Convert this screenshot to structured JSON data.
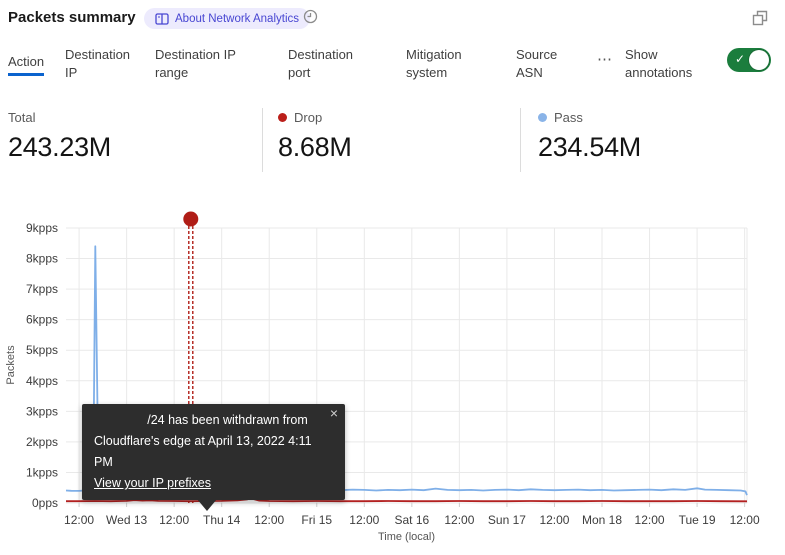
{
  "header": {
    "title": "Packets summary",
    "badge": {
      "icon": "book-icon",
      "label": "About Network Analytics"
    },
    "time_icon": "clock-icon",
    "window_icon": "restore-window-icon"
  },
  "tabs": {
    "items": [
      {
        "label": "Action",
        "active": true
      },
      {
        "label": "Destination IP",
        "active": false
      },
      {
        "label": "Destination IP range",
        "active": false
      },
      {
        "label": "Destination port",
        "active": false
      },
      {
        "label": "Mitigation system",
        "active": false
      },
      {
        "label": "Source ASN",
        "active": false
      }
    ],
    "more_label": "⋯",
    "active_underline_color": "#0b63ce",
    "annotations_toggle": {
      "label": "Show annotations",
      "state": "on",
      "color": "#1b7d3d",
      "check_icon": "✓"
    }
  },
  "stats": {
    "items": [
      {
        "label": "Total",
        "value": "243.23M",
        "dot_color": ""
      },
      {
        "label": "Drop",
        "value": "8.68M",
        "dot_color": "#bb1f1a"
      },
      {
        "label": "Pass",
        "value": "234.54M",
        "dot_color": "#8ab4e8"
      }
    ]
  },
  "tooltip": {
    "line1": "/24 has been withdrawn from",
    "line2": "Cloudflare's edge at April 13, 2022 4:11 PM",
    "link": "View your IP prefixes",
    "close": "×"
  },
  "chart_data": {
    "type": "line",
    "title": "Packets summary",
    "xlabel": "Time (local)",
    "ylabel": "Packets",
    "x_unit": "hours since Apr 12 2022 00:00 local",
    "x_domain": [
      8.7,
      180.6
    ],
    "y_domain": [
      0,
      9000
    ],
    "grid": true,
    "legend_position": "none",
    "y_ticks": [
      {
        "v": 0,
        "label": "0pps"
      },
      {
        "v": 1000,
        "label": "1kpps"
      },
      {
        "v": 2000,
        "label": "2kpps"
      },
      {
        "v": 3000,
        "label": "3kpps"
      },
      {
        "v": 4000,
        "label": "4kpps"
      },
      {
        "v": 5000,
        "label": "5kpps"
      },
      {
        "v": 6000,
        "label": "6kpps"
      },
      {
        "v": 7000,
        "label": "7kpps"
      },
      {
        "v": 8000,
        "label": "8kpps"
      },
      {
        "v": 9000,
        "label": "9kpps"
      }
    ],
    "x_ticks": [
      {
        "t": 12,
        "label": "12:00"
      },
      {
        "t": 24,
        "label": "Wed 13"
      },
      {
        "t": 36,
        "label": "12:00"
      },
      {
        "t": 48,
        "label": "Thu 14"
      },
      {
        "t": 60,
        "label": "12:00"
      },
      {
        "t": 72,
        "label": "Fri 15"
      },
      {
        "t": 84,
        "label": "12:00"
      },
      {
        "t": 96,
        "label": "Sat 16"
      },
      {
        "t": 108,
        "label": "12:00"
      },
      {
        "t": 120,
        "label": "Sun 17"
      },
      {
        "t": 132,
        "label": "12:00"
      },
      {
        "t": 144,
        "label": "Mon 18"
      },
      {
        "t": 156,
        "label": "12:00"
      },
      {
        "t": 168,
        "label": "Tue 19"
      },
      {
        "t": 180,
        "label": "12:00"
      }
    ],
    "series": [
      {
        "name": "Pass",
        "color": "#7fafe8",
        "unit": "pps",
        "points": [
          [
            8.7,
            410
          ],
          [
            10,
            400
          ],
          [
            12,
            395
          ],
          [
            13.5,
            410
          ],
          [
            15,
            430
          ],
          [
            15.6,
            900
          ],
          [
            16.1,
            8400
          ],
          [
            16.7,
            2600
          ],
          [
            17.2,
            700
          ],
          [
            18,
            520
          ],
          [
            19.5,
            430
          ],
          [
            21,
            400
          ],
          [
            24,
            390
          ],
          [
            27,
            410
          ],
          [
            30,
            440
          ],
          [
            32.5,
            560
          ],
          [
            34,
            430
          ],
          [
            36,
            410
          ],
          [
            38.5,
            470
          ],
          [
            40.2,
            620
          ],
          [
            41.5,
            430
          ],
          [
            44,
            410
          ],
          [
            48,
            400
          ],
          [
            51,
            430
          ],
          [
            54,
            440
          ],
          [
            57,
            410
          ],
          [
            60,
            420
          ],
          [
            63,
            400
          ],
          [
            66,
            430
          ],
          [
            69,
            410
          ],
          [
            72,
            500
          ],
          [
            75,
            430
          ],
          [
            78,
            420
          ],
          [
            81,
            440
          ],
          [
            84,
            430
          ],
          [
            87,
            410
          ],
          [
            90,
            430
          ],
          [
            93,
            420
          ],
          [
            96,
            440
          ],
          [
            99,
            420
          ],
          [
            102,
            470
          ],
          [
            105,
            430
          ],
          [
            108,
            420
          ],
          [
            111,
            430
          ],
          [
            114,
            410
          ],
          [
            117,
            430
          ],
          [
            120,
            440
          ],
          [
            123,
            420
          ],
          [
            126,
            450
          ],
          [
            129,
            430
          ],
          [
            132,
            420
          ],
          [
            135,
            430
          ],
          [
            138,
            440
          ],
          [
            141,
            420
          ],
          [
            144,
            430
          ],
          [
            147,
            410
          ],
          [
            150,
            420
          ],
          [
            153,
            430
          ],
          [
            156,
            440
          ],
          [
            159,
            420
          ],
          [
            162,
            450
          ],
          [
            165,
            430
          ],
          [
            168,
            480
          ],
          [
            170,
            440
          ],
          [
            173,
            430
          ],
          [
            176,
            420
          ],
          [
            179,
            410
          ],
          [
            180.2,
            380
          ],
          [
            180.6,
            260
          ]
        ]
      },
      {
        "name": "Drop",
        "color": "#b32121",
        "unit": "pps",
        "points": [
          [
            8.7,
            60
          ],
          [
            12,
            60
          ],
          [
            16,
            65
          ],
          [
            20,
            60
          ],
          [
            24,
            70
          ],
          [
            26,
            95
          ],
          [
            28,
            80
          ],
          [
            30,
            90
          ],
          [
            32,
            70
          ],
          [
            36,
            65
          ],
          [
            40,
            60
          ],
          [
            44,
            65
          ],
          [
            48,
            70
          ],
          [
            52,
            85
          ],
          [
            54.5,
            120
          ],
          [
            55.3,
            250
          ],
          [
            56,
            130
          ],
          [
            57.5,
            80
          ],
          [
            60,
            65
          ],
          [
            66,
            60
          ],
          [
            72,
            65
          ],
          [
            78,
            60
          ],
          [
            84,
            60
          ],
          [
            90,
            65
          ],
          [
            96,
            60
          ],
          [
            102,
            60
          ],
          [
            108,
            65
          ],
          [
            114,
            60
          ],
          [
            120,
            60
          ],
          [
            126,
            65
          ],
          [
            132,
            60
          ],
          [
            138,
            60
          ],
          [
            144,
            65
          ],
          [
            150,
            60
          ],
          [
            156,
            60
          ],
          [
            162,
            60
          ],
          [
            168,
            65
          ],
          [
            174,
            60
          ],
          [
            180.6,
            55
          ]
        ]
      }
    ],
    "annotation": {
      "t": 40.2,
      "color": "#b01d16",
      "text": "/24 has been withdrawn from Cloudflare's edge at April 13, 2022 4:11 PM"
    }
  }
}
